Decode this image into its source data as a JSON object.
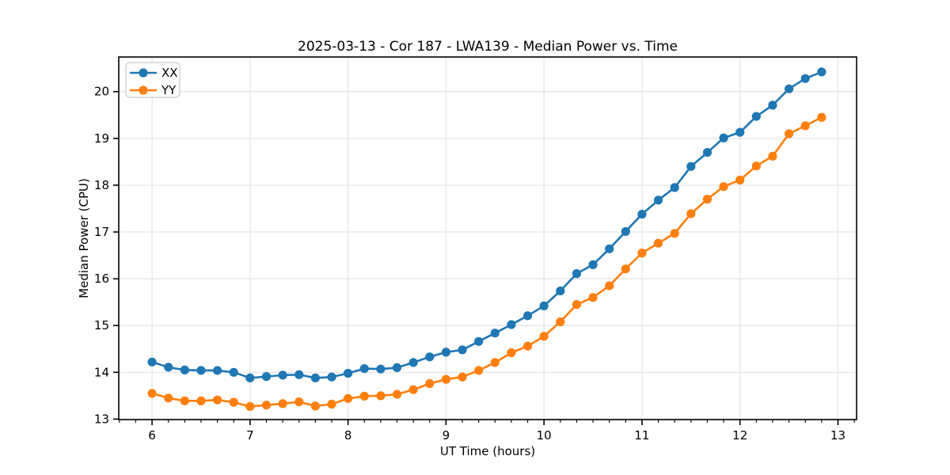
{
  "chart_data": {
    "type": "line",
    "title": "2025-03-13 - Cor 187 - LWA139 - Median Power vs. Time",
    "xlabel": "UT Time (hours)",
    "ylabel": "Median Power (CPU)",
    "x": [
      6.0,
      6.1667,
      6.3333,
      6.5,
      6.6667,
      6.8333,
      7.0,
      7.1667,
      7.3333,
      7.5,
      7.6667,
      7.8333,
      8.0,
      8.1667,
      8.3333,
      8.5,
      8.6667,
      8.8333,
      9.0,
      9.1667,
      9.3333,
      9.5,
      9.6667,
      9.8333,
      10.0,
      10.1667,
      10.3333,
      10.5,
      10.6667,
      10.8333,
      11.0,
      11.1667,
      11.3333,
      11.5,
      11.6667,
      11.8333,
      12.0,
      12.1667,
      12.3333,
      12.5,
      12.6667,
      12.8333
    ],
    "series": [
      {
        "name": "XX",
        "color": "#1f77b4",
        "values": [
          14.22,
          14.11,
          14.05,
          14.04,
          14.04,
          14.0,
          13.88,
          13.91,
          13.94,
          13.95,
          13.88,
          13.9,
          13.98,
          14.08,
          14.07,
          14.1,
          14.21,
          14.33,
          14.43,
          14.48,
          14.66,
          14.84,
          15.02,
          15.21,
          15.42,
          15.74,
          16.11,
          16.3,
          16.64,
          17.01,
          17.38,
          17.68,
          17.95,
          18.4,
          18.7,
          19.01,
          19.13,
          19.47,
          19.71,
          20.06,
          20.28,
          20.42
        ]
      },
      {
        "name": "YY",
        "color": "#ff7f0e",
        "values": [
          13.55,
          13.45,
          13.39,
          13.39,
          13.41,
          13.36,
          13.27,
          13.3,
          13.33,
          13.37,
          13.28,
          13.32,
          13.44,
          13.49,
          13.5,
          13.53,
          13.63,
          13.76,
          13.85,
          13.9,
          14.04,
          14.21,
          14.42,
          14.56,
          14.77,
          15.08,
          15.45,
          15.6,
          15.85,
          16.21,
          16.55,
          16.76,
          16.97,
          17.39,
          17.7,
          17.97,
          18.11,
          18.41,
          18.62,
          19.1,
          19.27,
          19.45
        ]
      }
    ],
    "xlim": [
      5.66,
      13.19
    ],
    "ylim": [
      12.99,
      20.74
    ],
    "xticks": [
      6,
      7,
      8,
      9,
      10,
      11,
      12,
      13
    ],
    "yticks": [
      13,
      14,
      15,
      16,
      17,
      18,
      19,
      20
    ],
    "x_minor_step": 0.166667,
    "grid": true,
    "grid_color": "#e3e3e3",
    "spine_color": "#000000",
    "legend": {
      "position": "upper left",
      "entries": [
        "XX",
        "YY"
      ]
    },
    "marker": "o"
  }
}
